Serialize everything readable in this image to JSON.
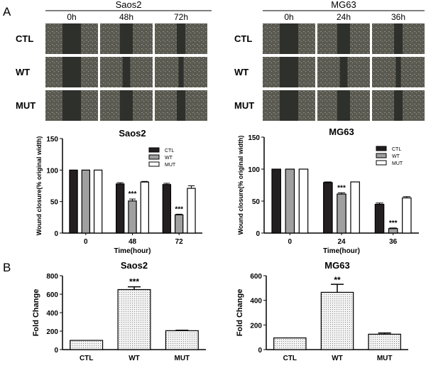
{
  "panel_labels": [
    "A",
    "B"
  ],
  "photos": [
    {
      "cell_line": "Saos2",
      "times": [
        "0h",
        "48h",
        "72h"
      ],
      "rows": [
        "CTL",
        "WT",
        "MUT"
      ]
    },
    {
      "cell_line": "MG63",
      "times": [
        "0h",
        "24h",
        "36h"
      ],
      "rows": [
        "CTL",
        "WT",
        "MUT"
      ]
    }
  ],
  "chart_data": [
    {
      "type": "bar",
      "title": "Saos2",
      "xlabel": "Time(hour)",
      "ylabel": "Wound closure(% original width)",
      "categories": [
        "0",
        "48",
        "72"
      ],
      "ylim": [
        0,
        150
      ],
      "yticks": [
        0,
        50,
        100,
        150
      ],
      "legend": "top-right",
      "series": [
        {
          "name": "CTL",
          "values": [
            100,
            78,
            77
          ],
          "errors": [
            0,
            2,
            2
          ],
          "color": "#231f20"
        },
        {
          "name": "WT",
          "values": [
            100,
            51,
            29
          ],
          "errors": [
            0,
            3,
            1
          ],
          "color": "#a0a0a0"
        },
        {
          "name": "MUT",
          "values": [
            100,
            81,
            71
          ],
          "errors": [
            0,
            1,
            4
          ],
          "color": "#ffffff"
        }
      ],
      "annotations": [
        {
          "series": "WT",
          "category": "48",
          "text": "***"
        },
        {
          "series": "WT",
          "category": "72",
          "text": "***"
        }
      ]
    },
    {
      "type": "bar",
      "title": "MG63",
      "xlabel": "Time(hour)",
      "ylabel": "Wound closure(% original width)",
      "categories": [
        "0",
        "24",
        "36"
      ],
      "ylim": [
        0,
        150
      ],
      "yticks": [
        0,
        50,
        100,
        150
      ],
      "legend": "top-right",
      "series": [
        {
          "name": "CTL",
          "values": [
            100,
            79,
            45
          ],
          "errors": [
            0,
            1,
            2
          ],
          "color": "#231f20"
        },
        {
          "name": "WT",
          "values": [
            100,
            61,
            7
          ],
          "errors": [
            0,
            2,
            1
          ],
          "color": "#a0a0a0"
        },
        {
          "name": "MUT",
          "values": [
            100,
            80,
            55
          ],
          "errors": [
            0,
            0,
            2
          ],
          "color": "#ffffff"
        }
      ],
      "annotations": [
        {
          "series": "WT",
          "category": "24",
          "text": "***"
        },
        {
          "series": "WT",
          "category": "36",
          "text": "***"
        }
      ]
    },
    {
      "type": "bar",
      "title": "Saos2",
      "ylabel": "Fold Change",
      "categories": [
        "CTL",
        "WT",
        "MUT"
      ],
      "values": [
        100,
        650,
        205
      ],
      "errors": [
        0,
        30,
        5
      ],
      "ylim": [
        0,
        800
      ],
      "yticks": [
        0,
        200,
        400,
        600,
        800
      ],
      "annotations": [
        {
          "category": "WT",
          "text": "***"
        }
      ]
    },
    {
      "type": "bar",
      "title": "MG63",
      "ylabel": "Fold Change",
      "categories": [
        "CTL",
        "WT",
        "MUT"
      ],
      "values": [
        95,
        465,
        125
      ],
      "errors": [
        0,
        65,
        10
      ],
      "ylim": [
        0,
        600
      ],
      "yticks": [
        0,
        200,
        400,
        600
      ],
      "annotations": [
        {
          "category": "WT",
          "text": "**"
        }
      ]
    }
  ]
}
